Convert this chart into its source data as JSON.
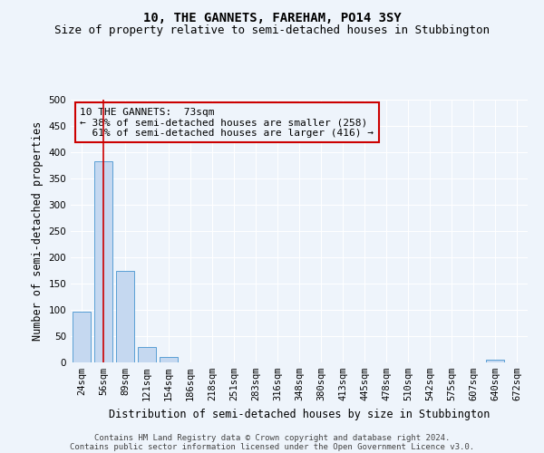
{
  "title": "10, THE GANNETS, FAREHAM, PO14 3SY",
  "subtitle": "Size of property relative to semi-detached houses in Stubbington",
  "xlabel": "Distribution of semi-detached houses by size in Stubbington",
  "ylabel": "Number of semi-detached properties",
  "footnote1": "Contains HM Land Registry data © Crown copyright and database right 2024.",
  "footnote2": "Contains public sector information licensed under the Open Government Licence v3.0.",
  "bar_color": "#c5d8f0",
  "bar_edge_color": "#5a9fd4",
  "background_color": "#eef4fb",
  "grid_color": "#ffffff",
  "annotation_box_edge": "#cc0000",
  "annotation_line_color": "#cc0000",
  "property_label": "10 THE GANNETS:  73sqm",
  "pct_smaller": 38,
  "count_smaller": 258,
  "pct_larger": 61,
  "count_larger": 416,
  "categories": [
    "24sqm",
    "56sqm",
    "89sqm",
    "121sqm",
    "154sqm",
    "186sqm",
    "218sqm",
    "251sqm",
    "283sqm",
    "316sqm",
    "348sqm",
    "380sqm",
    "413sqm",
    "445sqm",
    "478sqm",
    "510sqm",
    "542sqm",
    "575sqm",
    "607sqm",
    "640sqm",
    "672sqm"
  ],
  "values": [
    97,
    383,
    174,
    30,
    10,
    0,
    0,
    0,
    0,
    0,
    0,
    0,
    0,
    0,
    0,
    0,
    0,
    0,
    0,
    5,
    0
  ],
  "ylim": [
    0,
    500
  ],
  "yticks": [
    0,
    50,
    100,
    150,
    200,
    250,
    300,
    350,
    400,
    450,
    500
  ],
  "title_fontsize": 10,
  "subtitle_fontsize": 9,
  "axis_label_fontsize": 8.5,
  "tick_fontsize": 7.5,
  "annotation_fontsize": 8,
  "footnote_fontsize": 6.5
}
